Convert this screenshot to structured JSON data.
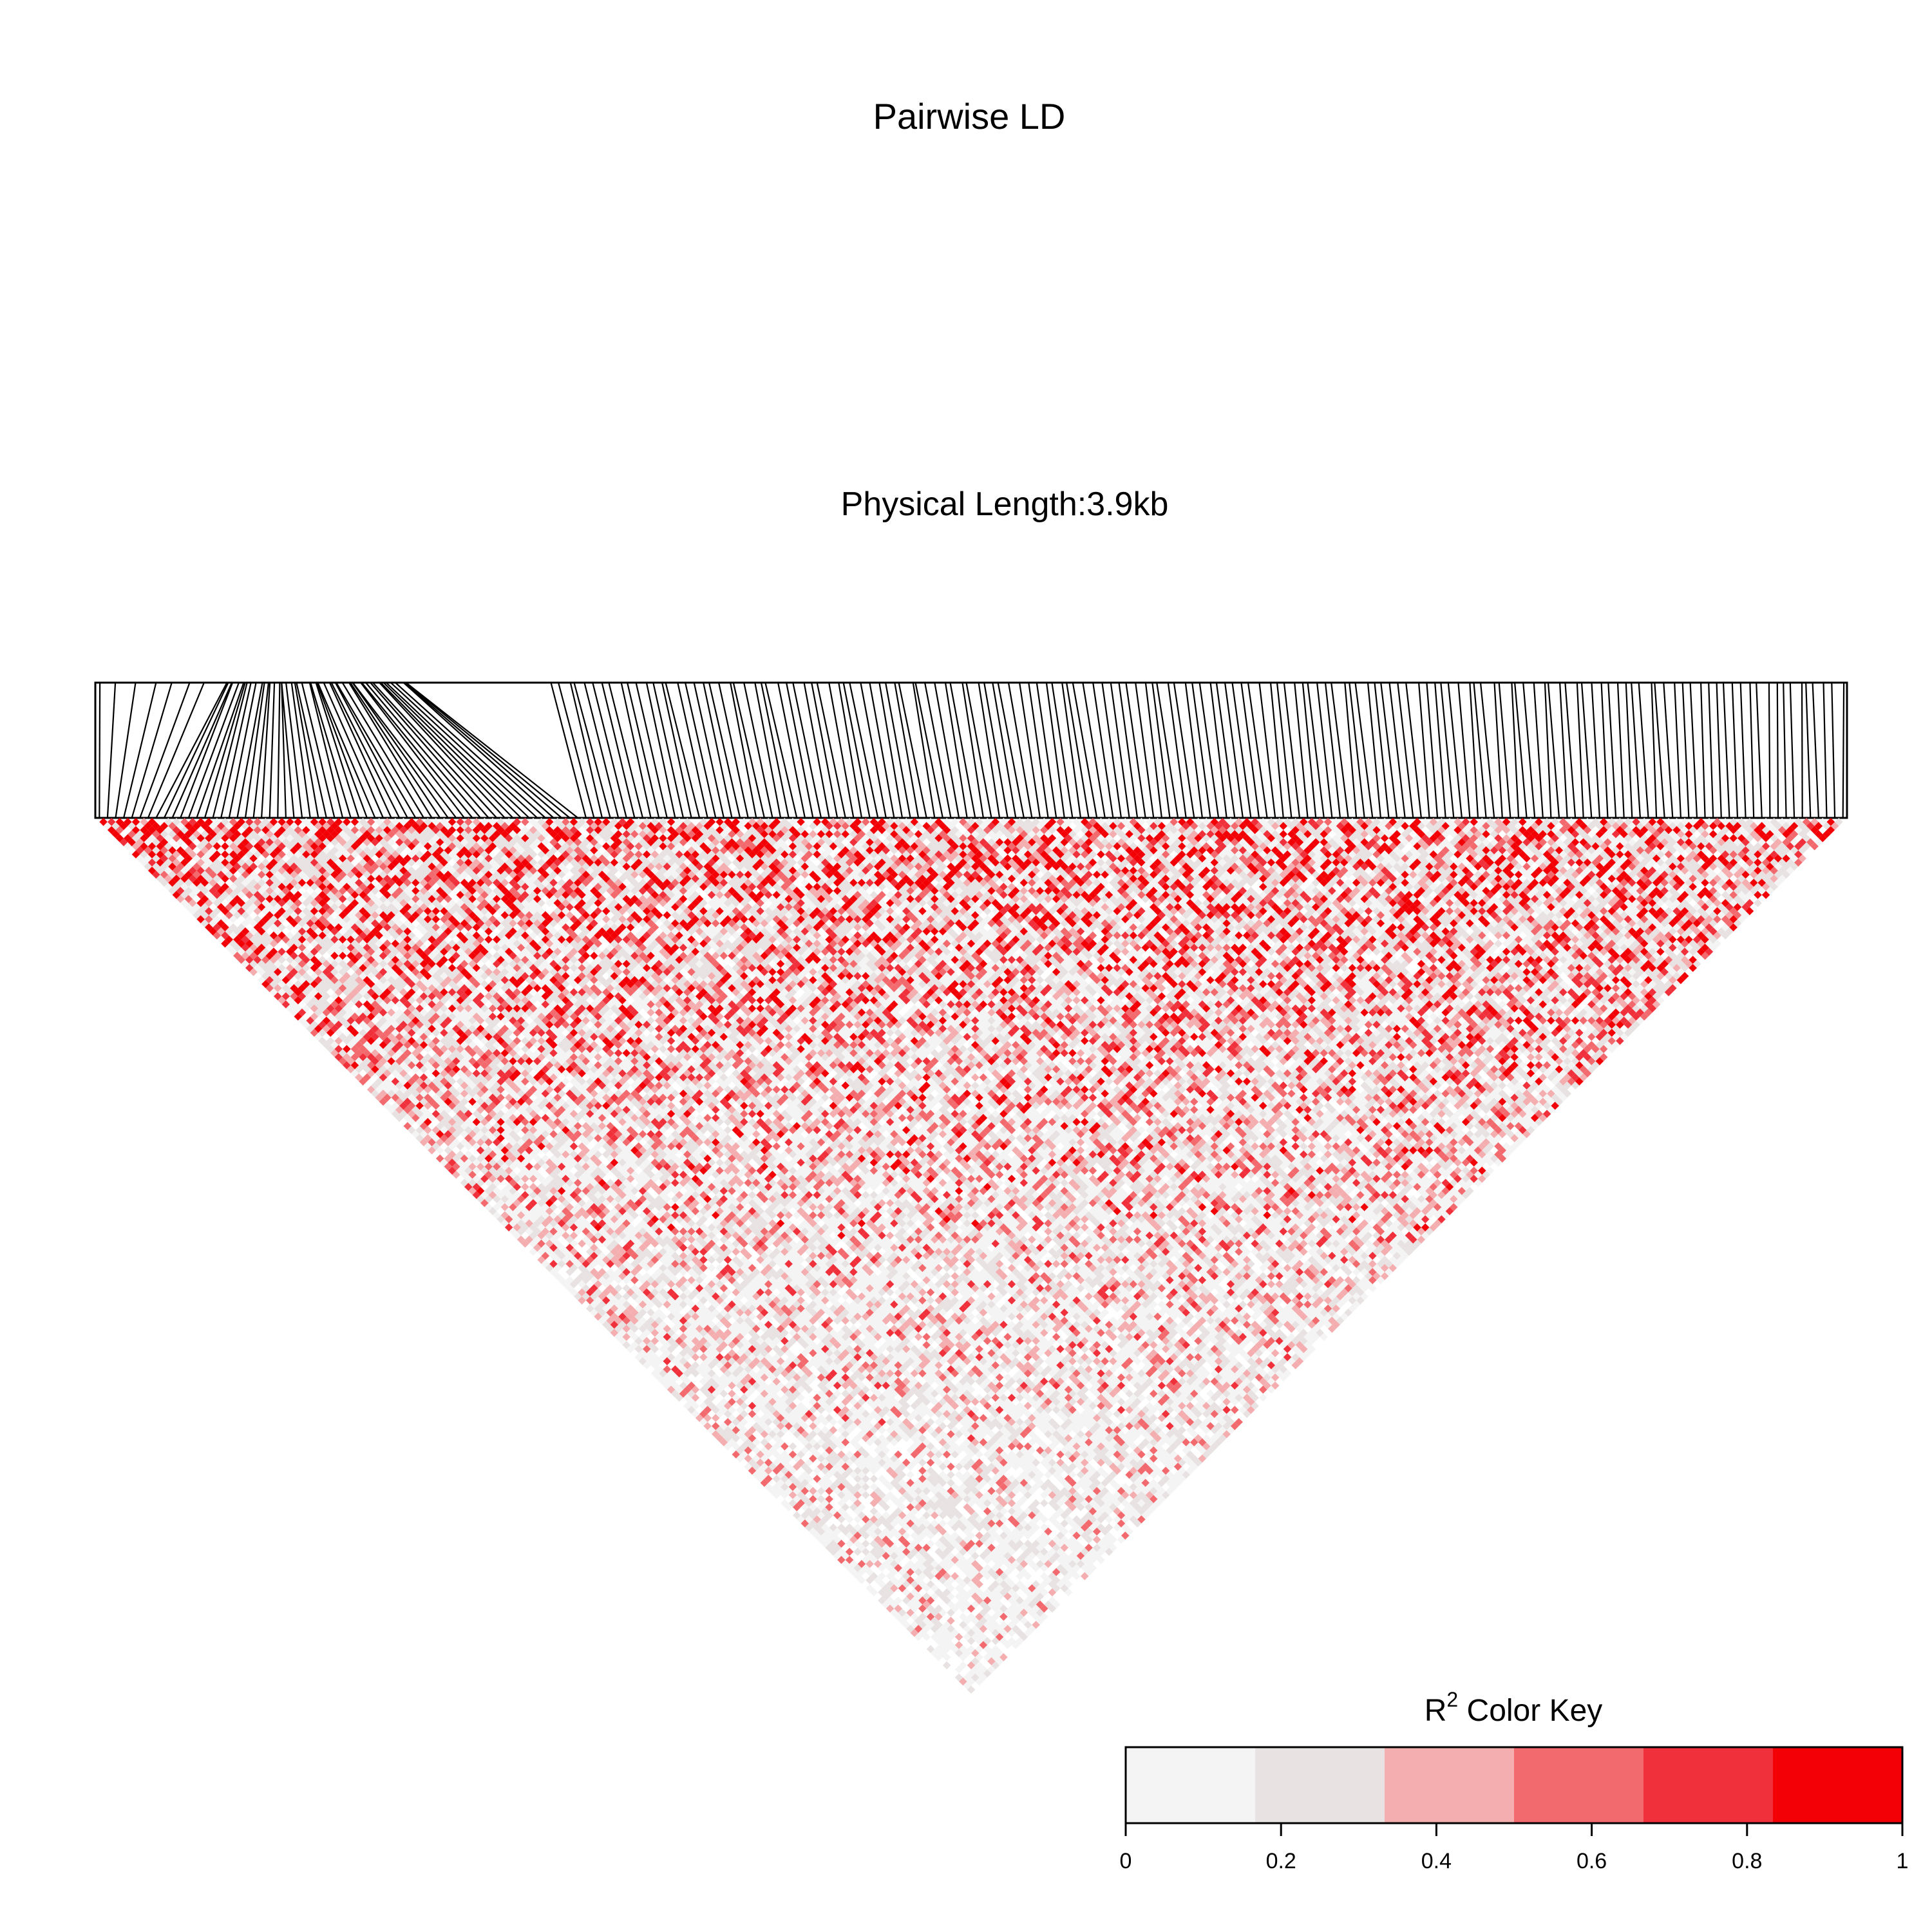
{
  "chart_data": {
    "type": "heatmap",
    "title": "Pairwise LD",
    "subtitle": "Physical Length:3.9kb",
    "snp_count": 216,
    "color_key": {
      "title_base": "R",
      "title_sup": "2",
      "title_rest": " Color Key",
      "breaks": [
        0,
        0.1667,
        0.3333,
        0.5,
        0.6667,
        0.8333,
        1
      ],
      "colors": [
        "#F4F4F4",
        "#E8E2E2",
        "#F4AEB0",
        "#F26A6E",
        "#F0303A",
        "#F20006"
      ],
      "ticks": [
        0,
        0.2,
        0.4,
        0.6,
        0.8,
        1
      ],
      "tick_labels": [
        "0",
        "0.2",
        "0.4",
        "0.6",
        "0.8",
        "1"
      ],
      "range": [
        0,
        1
      ]
    }
  }
}
